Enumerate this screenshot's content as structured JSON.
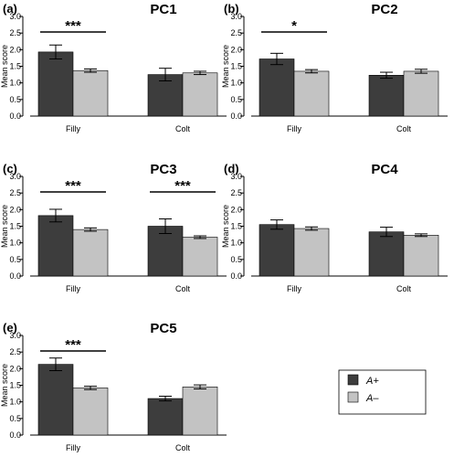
{
  "colors": {
    "a_plus": "#3d3d3d",
    "a_minus": "#c3c3c3",
    "axis": "#000000"
  },
  "legend": {
    "items": [
      {
        "label": "A+"
      },
      {
        "label": "A–"
      }
    ],
    "placement": "bottom-right"
  },
  "chart_data": [
    {
      "type": "bar",
      "panel_label": "(a)",
      "title": "PC1",
      "xlabel": "",
      "ylabel": "Mean score",
      "ylim": [
        0.0,
        3.0
      ],
      "yticks": [
        "0.0",
        "0.5",
        "1.0",
        "1.5",
        "2.0",
        "2.5",
        "3.0"
      ],
      "categories": [
        "Filly",
        "Colt"
      ],
      "series": [
        {
          "name": "A+",
          "values": [
            1.93,
            1.25
          ],
          "errors": [
            0.21,
            0.19
          ]
        },
        {
          "name": "A–",
          "values": [
            1.37,
            1.3
          ],
          "errors": [
            0.05,
            0.05
          ]
        }
      ],
      "significance": [
        {
          "category": "Filly",
          "label": "***"
        }
      ]
    },
    {
      "type": "bar",
      "panel_label": "(b)",
      "title": "PC2",
      "xlabel": "",
      "ylabel": "Mean score",
      "ylim": [
        0.0,
        3.0
      ],
      "yticks": [
        "0.0",
        "0.5",
        "1.0",
        "1.5",
        "2.0",
        "2.5",
        "3.0"
      ],
      "categories": [
        "Filly",
        "Colt"
      ],
      "series": [
        {
          "name": "A+",
          "values": [
            1.72,
            1.23
          ],
          "errors": [
            0.17,
            0.09
          ]
        },
        {
          "name": "A–",
          "values": [
            1.35,
            1.35
          ],
          "errors": [
            0.05,
            0.06
          ]
        }
      ],
      "significance": [
        {
          "category": "Filly",
          "label": "*"
        }
      ]
    },
    {
      "type": "bar",
      "panel_label": "(c)",
      "title": "PC3",
      "xlabel": "",
      "ylabel": "Mean score",
      "ylim": [
        0.0,
        3.0
      ],
      "yticks": [
        "0.0",
        "0.5",
        "1.0",
        "1.5",
        "2.0",
        "2.5",
        "3.0"
      ],
      "categories": [
        "Filly",
        "Colt"
      ],
      "series": [
        {
          "name": "A+",
          "values": [
            1.82,
            1.5
          ],
          "errors": [
            0.19,
            0.22
          ]
        },
        {
          "name": "A–",
          "values": [
            1.4,
            1.17
          ],
          "errors": [
            0.05,
            0.04
          ]
        }
      ],
      "significance": [
        {
          "category": "Filly",
          "label": "***"
        },
        {
          "category": "Colt",
          "label": "***"
        }
      ]
    },
    {
      "type": "bar",
      "panel_label": "(d)",
      "title": "PC4",
      "xlabel": "",
      "ylabel": "Mean score",
      "ylim": [
        0.0,
        3.0
      ],
      "yticks": [
        "0.0",
        "0.5",
        "1.0",
        "1.5",
        "2.0",
        "2.5",
        "3.0"
      ],
      "categories": [
        "Filly",
        "Colt"
      ],
      "series": [
        {
          "name": "A+",
          "values": [
            1.55,
            1.33
          ],
          "errors": [
            0.14,
            0.14
          ]
        },
        {
          "name": "A–",
          "values": [
            1.43,
            1.23
          ],
          "errors": [
            0.05,
            0.04
          ]
        }
      ],
      "significance": []
    },
    {
      "type": "bar",
      "panel_label": "(e)",
      "title": "PC5",
      "xlabel": "",
      "ylabel": "Mean score",
      "ylim": [
        0.0,
        3.0
      ],
      "yticks": [
        "0.0",
        "0.5",
        "1.0",
        "1.5",
        "2.0",
        "2.5",
        "3.0"
      ],
      "categories": [
        "Filly",
        "Colt"
      ],
      "series": [
        {
          "name": "A+",
          "values": [
            2.13,
            1.1
          ],
          "errors": [
            0.19,
            0.07
          ]
        },
        {
          "name": "A–",
          "values": [
            1.42,
            1.45
          ],
          "errors": [
            0.05,
            0.06
          ]
        }
      ],
      "significance": [
        {
          "category": "Filly",
          "label": "***"
        }
      ]
    }
  ]
}
